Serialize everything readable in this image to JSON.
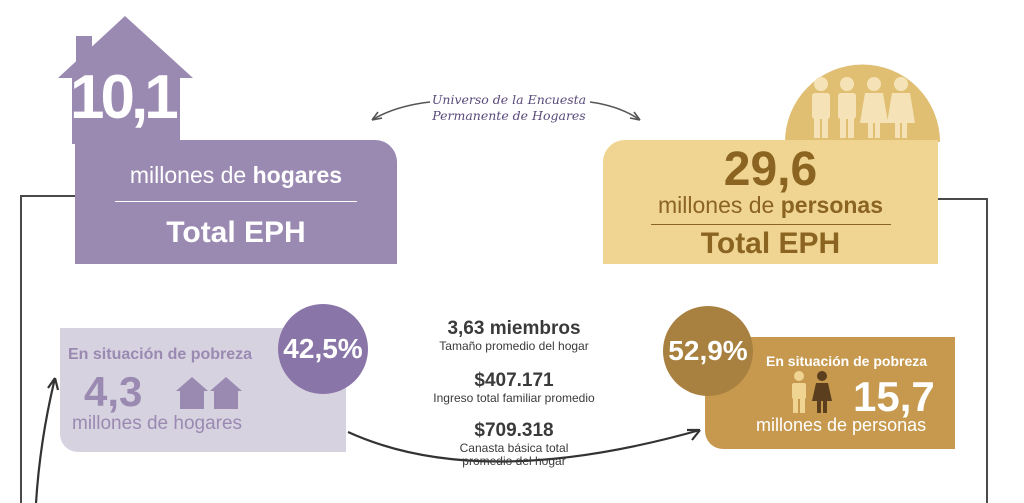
{
  "left_block": {
    "house_value": "10,1",
    "unit_prefix": "millones de ",
    "unit_bold": "hogares",
    "total_label": "Total EPH"
  },
  "right_block": {
    "value": "29,6",
    "unit_prefix": "millones de ",
    "unit_bold": "personas",
    "total_label": "Total EPH"
  },
  "universe_caption": {
    "line1": "Universo de la Encuesta",
    "line2": "Permanente de Hogares"
  },
  "poverty_households": {
    "title": "En situación de pobreza",
    "value": "4,3",
    "unit": "millones de hogares",
    "percent": "42,5%"
  },
  "poverty_persons": {
    "title": "En situación de pobreza",
    "value": "15,7",
    "unit": "millones de personas",
    "percent": "52,9%"
  },
  "center_stats": [
    {
      "value": "3,63 miembros",
      "label": "Tamaño promedio del hogar"
    },
    {
      "value": "$407.171",
      "label": "Ingreso total familiar promedio"
    },
    {
      "value": "$709.318",
      "label_line1": "Canasta básica total",
      "label_line2": "promedio del hogar"
    }
  ],
  "colors": {
    "purple": "#9a8ab2",
    "purple_light": "#d7d2e0",
    "purple_circle": "#8a75a8",
    "gold": "#f0d592",
    "gold_dark": "#c6994f",
    "gold_circle": "#a8803f",
    "gold_text": "#8a6420"
  }
}
